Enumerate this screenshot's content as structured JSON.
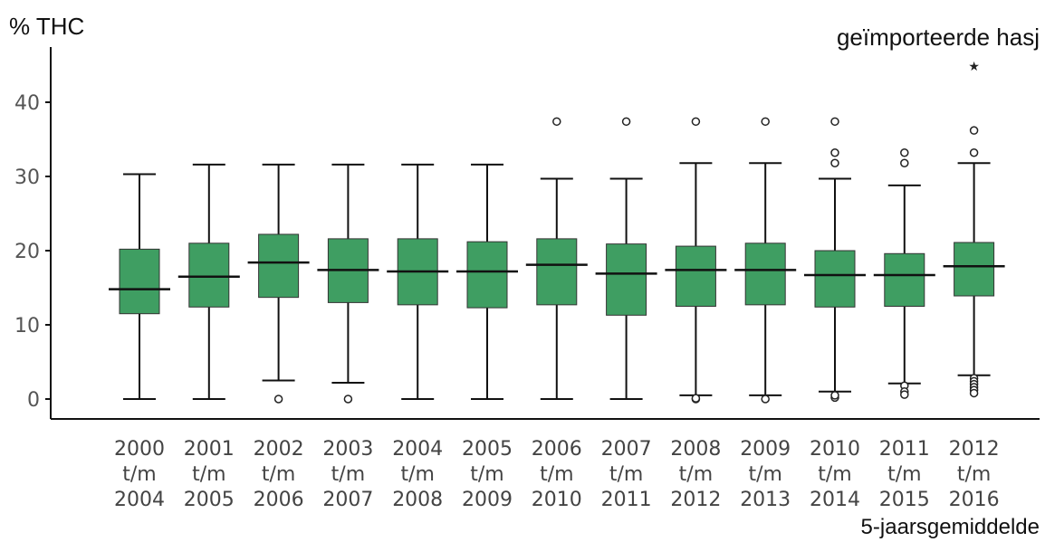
{
  "chart_data": {
    "type": "box",
    "title": "geïmporteerde hasj",
    "ylabel": "% THC",
    "xlabel": "5-jaarsgemiddelde",
    "ylim": [
      -3,
      48
    ],
    "yticks": [
      0,
      10,
      20,
      30,
      40
    ],
    "box_color": "#3f9e62",
    "grid": false,
    "categories": [
      [
        "2000",
        "t/m",
        "2004"
      ],
      [
        "2001",
        "t/m",
        "2005"
      ],
      [
        "2002",
        "t/m",
        "2006"
      ],
      [
        "2003",
        "t/m",
        "2007"
      ],
      [
        "2004",
        "t/m",
        "2008"
      ],
      [
        "2005",
        "t/m",
        "2009"
      ],
      [
        "2006",
        "t/m",
        "2010"
      ],
      [
        "2007",
        "t/m",
        "2011"
      ],
      [
        "2008",
        "t/m",
        "2012"
      ],
      [
        "2009",
        "t/m",
        "2013"
      ],
      [
        "2010",
        "t/m",
        "2014"
      ],
      [
        "2011",
        "t/m",
        "2015"
      ],
      [
        "2012",
        "t/m",
        "2016"
      ]
    ],
    "boxes": [
      {
        "whisker_low": 0,
        "q1": 11.5,
        "median": 14.8,
        "q3": 20.2,
        "whisker_high": 30.3,
        "outliers": [],
        "extremes": []
      },
      {
        "whisker_low": 0,
        "q1": 12.4,
        "median": 16.5,
        "q3": 21.0,
        "whisker_high": 31.6,
        "outliers": [],
        "extremes": []
      },
      {
        "whisker_low": 2.5,
        "q1": 13.7,
        "median": 18.4,
        "q3": 22.2,
        "whisker_high": 31.6,
        "outliers": [
          0
        ],
        "extremes": []
      },
      {
        "whisker_low": 2.2,
        "q1": 13.0,
        "median": 17.4,
        "q3": 21.6,
        "whisker_high": 31.6,
        "outliers": [
          0
        ],
        "extremes": []
      },
      {
        "whisker_low": 0,
        "q1": 12.7,
        "median": 17.2,
        "q3": 21.6,
        "whisker_high": 31.6,
        "outliers": [],
        "extremes": []
      },
      {
        "whisker_low": 0,
        "q1": 12.3,
        "median": 17.2,
        "q3": 21.2,
        "whisker_high": 31.6,
        "outliers": [],
        "extremes": []
      },
      {
        "whisker_low": 0,
        "q1": 12.7,
        "median": 18.1,
        "q3": 21.6,
        "whisker_high": 29.7,
        "outliers": [
          37.4
        ],
        "extremes": []
      },
      {
        "whisker_low": 0,
        "q1": 11.3,
        "median": 16.9,
        "q3": 20.9,
        "whisker_high": 29.7,
        "outliers": [
          37.4
        ],
        "extremes": []
      },
      {
        "whisker_low": 0.5,
        "q1": 12.5,
        "median": 17.4,
        "q3": 20.6,
        "whisker_high": 31.8,
        "outliers": [
          37.4,
          0,
          0.1
        ],
        "extremes": []
      },
      {
        "whisker_low": 0.5,
        "q1": 12.7,
        "median": 17.4,
        "q3": 21.0,
        "whisker_high": 31.8,
        "outliers": [
          37.4,
          0
        ],
        "extremes": []
      },
      {
        "whisker_low": 1.0,
        "q1": 12.4,
        "median": 16.7,
        "q3": 20.0,
        "whisker_high": 29.7,
        "outliers": [
          37.4,
          33.2,
          31.8,
          0.2,
          0.5
        ],
        "extremes": []
      },
      {
        "whisker_low": 2.1,
        "q1": 12.5,
        "median": 16.7,
        "q3": 19.6,
        "whisker_high": 28.8,
        "outliers": [
          33.2,
          31.8,
          1.8,
          1.0,
          0.6
        ],
        "extremes": []
      },
      {
        "whisker_low": 3.2,
        "q1": 13.9,
        "median": 17.9,
        "q3": 21.1,
        "whisker_high": 31.8,
        "outliers": [
          36.2,
          33.2,
          2.8,
          2.4,
          2.0,
          1.6,
          1.2,
          0.8
        ],
        "extremes": [
          45.0
        ]
      }
    ]
  }
}
